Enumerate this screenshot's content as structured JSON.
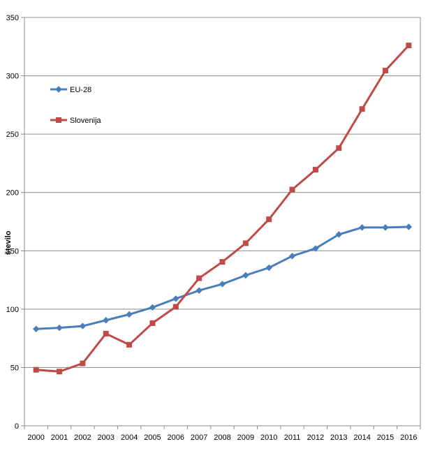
{
  "chart_data": {
    "type": "line",
    "title": "",
    "xlabel": "",
    "ylabel": "število",
    "ylim": [
      0,
      350
    ],
    "yticks": [
      0,
      50,
      100,
      150,
      200,
      250,
      300,
      350
    ],
    "grid": "horizontal",
    "legend_position": "top-left",
    "categories": [
      "2000",
      "2001",
      "2002",
      "2003",
      "2004",
      "2005",
      "2006",
      "2007",
      "2008",
      "2009",
      "2010",
      "2011",
      "2012",
      "2013",
      "2014",
      "2015",
      "2016"
    ],
    "series": [
      {
        "name": "EU-28",
        "color": "#4a7ebb",
        "marker": "diamond",
        "values": [
          83,
          84,
          85.5,
          90.5,
          95.5,
          101.5,
          109,
          116,
          121.5,
          129,
          135.5,
          145.5,
          152,
          164,
          170,
          170,
          170.5
        ]
      },
      {
        "name": "Slovenija",
        "color": "#be4b48",
        "marker": "square",
        "values": [
          48,
          46.5,
          53.5,
          79,
          69.5,
          88,
          102,
          126.5,
          140.5,
          156.5,
          177,
          202.5,
          219.5,
          238,
          271.5,
          304.5,
          326
        ]
      }
    ]
  }
}
